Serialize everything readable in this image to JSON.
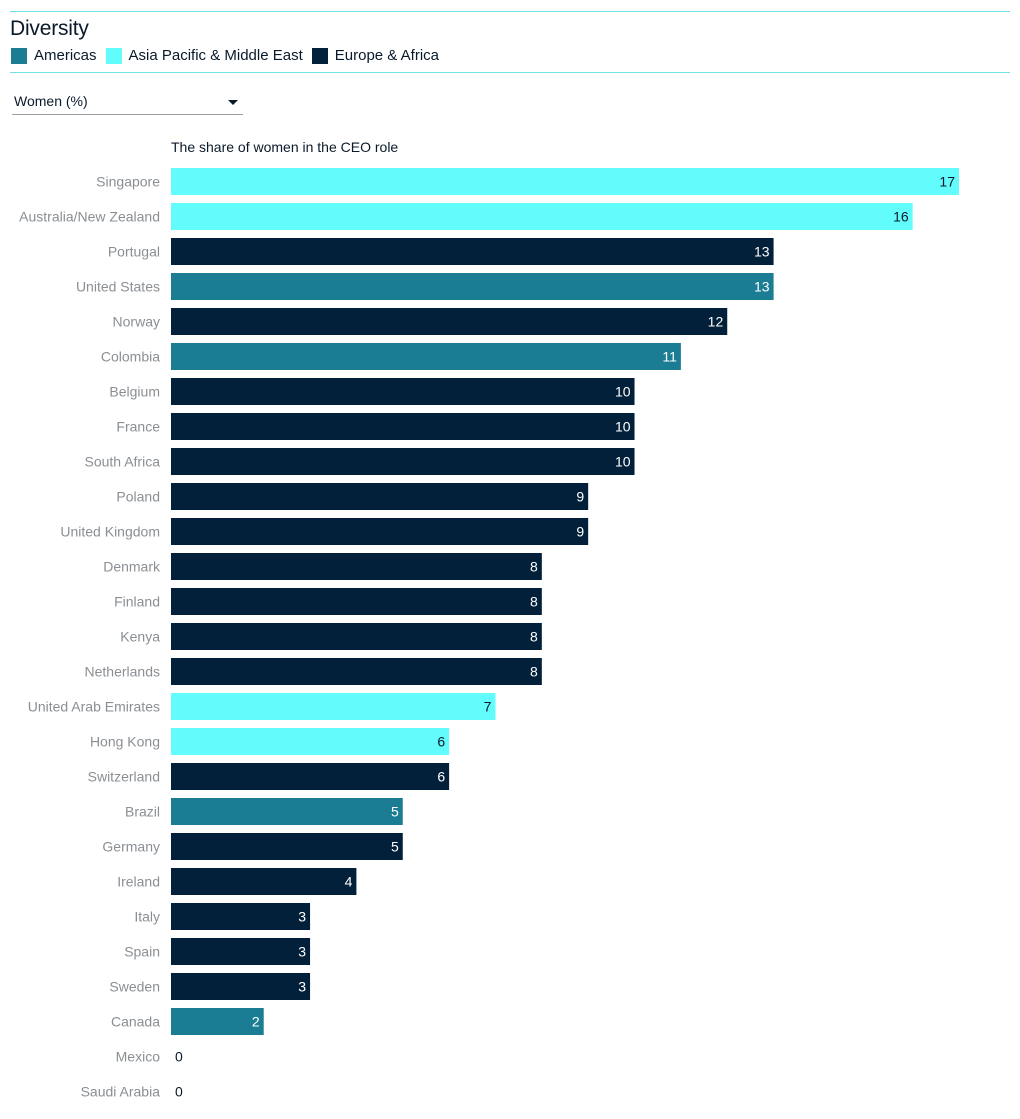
{
  "header": {
    "title": "Diversity"
  },
  "legend": [
    {
      "label": "Americas",
      "color": "#1b7d93"
    },
    {
      "label": "Asia Pacific & Middle East",
      "color": "#62fcfc"
    },
    {
      "label": "Europe & Africa",
      "color": "#03203a"
    }
  ],
  "dropdown": {
    "selected": "Women (%)",
    "icon": "chevron-down-icon"
  },
  "chart_data": {
    "type": "bar",
    "orientation": "horizontal",
    "title": "The share of women in the CEO role",
    "xlim": [
      0,
      17
    ],
    "grid": false,
    "region_colors": {
      "Americas": "#1b7d93",
      "Asia Pacific & Middle East": "#62fcfc",
      "Europe & Africa": "#03203a"
    },
    "categories": [
      "Singapore",
      "Australia/New Zealand",
      "Portugal",
      "United States",
      "Norway",
      "Colombia",
      "Belgium",
      "France",
      "South Africa",
      "Poland",
      "United Kingdom",
      "Denmark",
      "Finland",
      "Kenya",
      "Netherlands",
      "United Arab Emirates",
      "Hong Kong",
      "Switzerland",
      "Brazil",
      "Germany",
      "Ireland",
      "Italy",
      "Spain",
      "Sweden",
      "Canada",
      "Mexico",
      "Saudi Arabia"
    ],
    "values": [
      17,
      16,
      13,
      13,
      12,
      11,
      10,
      10,
      10,
      9,
      9,
      8,
      8,
      8,
      8,
      7,
      6,
      6,
      5,
      5,
      4,
      3,
      3,
      3,
      2,
      0,
      0
    ],
    "regions": [
      "Asia Pacific & Middle East",
      "Asia Pacific & Middle East",
      "Europe & Africa",
      "Americas",
      "Europe & Africa",
      "Americas",
      "Europe & Africa",
      "Europe & Africa",
      "Europe & Africa",
      "Europe & Africa",
      "Europe & Africa",
      "Europe & Africa",
      "Europe & Africa",
      "Europe & Africa",
      "Europe & Africa",
      "Asia Pacific & Middle East",
      "Asia Pacific & Middle East",
      "Europe & Africa",
      "Americas",
      "Europe & Africa",
      "Europe & Africa",
      "Europe & Africa",
      "Europe & Africa",
      "Europe & Africa",
      "Americas",
      "Americas",
      "Asia Pacific & Middle East"
    ]
  }
}
